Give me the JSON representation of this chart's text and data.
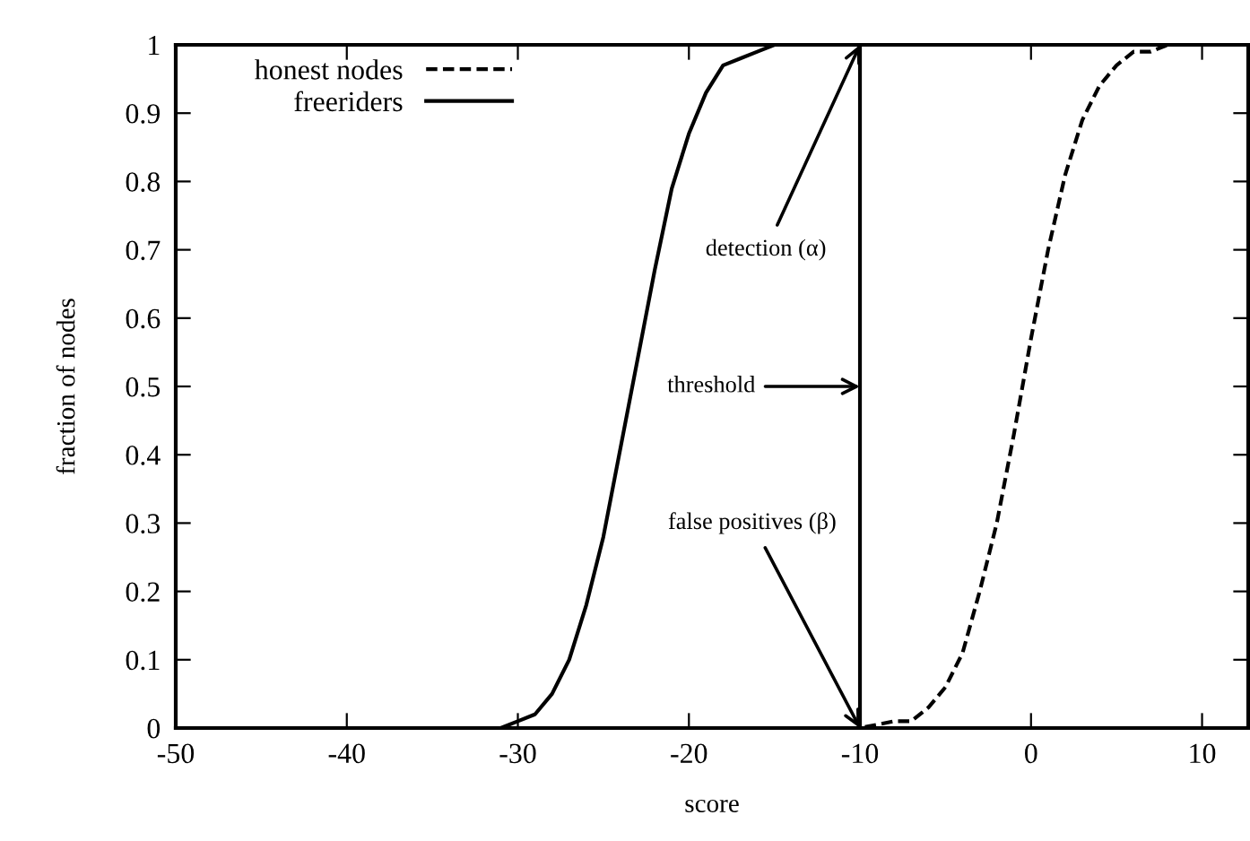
{
  "chart_data": {
    "type": "line",
    "xlabel": "score",
    "ylabel": "fraction of nodes",
    "series": [
      {
        "name": "honest nodes",
        "color": "#000000",
        "line_style": "dashed",
        "x": [
          -50,
          -12,
          -10,
          -8,
          -7,
          -6,
          -5,
          -4,
          -3,
          -2,
          -1,
          0,
          1,
          2,
          3,
          4,
          5,
          6,
          7,
          8,
          12.7
        ],
        "values": [
          0,
          0,
          0.0,
          0.01,
          0.01,
          0.03,
          0.06,
          0.11,
          0.2,
          0.3,
          0.43,
          0.57,
          0.7,
          0.81,
          0.89,
          0.94,
          0.97,
          0.99,
          0.99,
          1.0,
          1.0
        ]
      },
      {
        "name": "freeriders",
        "color": "#000000",
        "line_style": "solid",
        "x": [
          -50,
          -35,
          -33,
          -31,
          -30,
          -29,
          -28,
          -27,
          -26,
          -25,
          -24,
          -23,
          -22,
          -21,
          -20,
          -19,
          -18,
          -17,
          -16,
          -15,
          -12,
          -10,
          12.7
        ],
        "values": [
          0,
          0,
          0,
          0,
          0.01,
          0.02,
          0.05,
          0.1,
          0.18,
          0.28,
          0.41,
          0.54,
          0.67,
          0.79,
          0.87,
          0.93,
          0.97,
          0.98,
          0.99,
          1.0,
          1.0,
          1.0,
          1.0
        ]
      }
    ],
    "xlim": [
      -50,
      12.7
    ],
    "xticks": [
      -50,
      -40,
      -30,
      -20,
      -10,
      0,
      10
    ],
    "ylim": [
      0,
      1
    ],
    "yticks": [
      0,
      0.1,
      0.2,
      0.3,
      0.4,
      0.5,
      0.6,
      0.7,
      0.8,
      0.9,
      1
    ],
    "ref_lines": [
      {
        "axis": "x",
        "value": -10,
        "label": "threshold",
        "color": "#000000",
        "line_style": "solid"
      }
    ],
    "annotations": [
      {
        "text": "detection (α)",
        "x": -10,
        "y": 1
      },
      {
        "text": "false positives (β)",
        "x": -10,
        "y": 0
      }
    ],
    "legend": "top left",
    "grid": false,
    "marker": "none"
  }
}
